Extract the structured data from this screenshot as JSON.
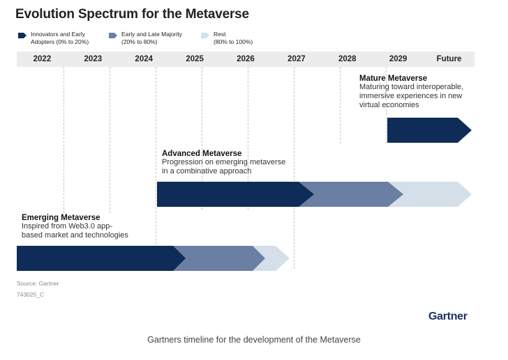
{
  "title": "Evolution Spectrum for the Metaverse",
  "legend": [
    {
      "label_line1": "Innovators and Early",
      "label_line2": "Adopters (0% to 20%)",
      "color": "#0f2b57"
    },
    {
      "label_line1": "Early and Late Majority",
      "label_line2": "(20% to 80%)",
      "color": "#6b7fa5"
    },
    {
      "label_line1": "Rest",
      "label_line2": "(80% to 100%)",
      "color": "#d4dfe9"
    }
  ],
  "timeline": [
    "2022",
    "2023",
    "2024",
    "2025",
    "2026",
    "2027",
    "2028",
    "2029",
    "Future"
  ],
  "stages": [
    {
      "title": "Mature Metaverse",
      "description": [
        "Maturing toward interoperable,",
        "immersive experiences in new",
        "virtual economies"
      ]
    },
    {
      "title": "Advanced Metaverse",
      "description": [
        "Progression on emerging metaverse",
        "in a combinative approach"
      ]
    },
    {
      "title": "Emerging Metaverse",
      "description": [
        "Inspired from Web3.0 app-",
        "based market and technologies"
      ]
    }
  ],
  "source": "Source: Gartner",
  "code": "743025_C",
  "logo": "Gartner",
  "caption": "Gartners timeline for the development of the Metaverse"
}
